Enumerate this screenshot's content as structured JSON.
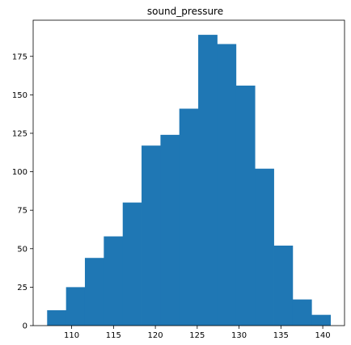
{
  "chart_data": {
    "type": "bar",
    "subtype": "histogram",
    "title": "sound_pressure",
    "xlabel": "",
    "ylabel": "",
    "bin_edges": [
      107.07,
      109.33,
      111.58,
      113.84,
      116.1,
      118.35,
      120.61,
      122.86,
      125.12,
      127.38,
      129.63,
      131.89,
      134.15,
      136.4,
      138.66,
      140.92
    ],
    "counts": [
      10,
      25,
      44,
      58,
      80,
      117,
      124,
      141,
      189,
      183,
      156,
      102,
      52,
      17,
      7
    ],
    "xlim": [
      105.4,
      142.6
    ],
    "ylim": [
      0,
      198.5
    ],
    "x_ticks": [
      110,
      115,
      120,
      125,
      130,
      135,
      140
    ],
    "y_ticks": [
      0,
      25,
      50,
      75,
      100,
      125,
      150,
      175
    ],
    "grid": false,
    "legend": "none",
    "colors": {
      "bar": "#1f77b4",
      "axis": "#000000",
      "background": "#ffffff"
    }
  }
}
